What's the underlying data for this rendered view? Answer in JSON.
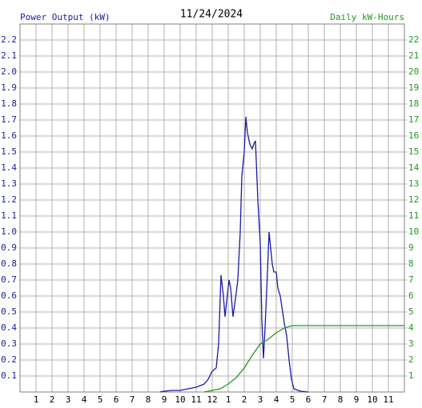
{
  "chart_data": {
    "type": "line",
    "title": "11/24/2024",
    "y_label": "Power Output (kW)",
    "y2_label": "Daily kW-Hours",
    "xlim": [
      0,
      24
    ],
    "xticks": [
      1,
      2,
      3,
      4,
      5,
      6,
      7,
      8,
      9,
      10,
      11,
      12,
      {
        "value": 13,
        "label": "1"
      },
      {
        "value": 14,
        "label": "2"
      },
      {
        "value": 15,
        "label": "3"
      },
      {
        "value": 16,
        "label": "4"
      },
      {
        "value": 17,
        "label": "5"
      },
      {
        "value": 18,
        "label": "6"
      },
      {
        "value": 19,
        "label": "7"
      },
      {
        "value": 20,
        "label": "8"
      },
      {
        "value": 21,
        "label": "9"
      },
      {
        "value": 22,
        "label": "10"
      },
      {
        "value": 23,
        "label": "11"
      }
    ],
    "ylim": [
      0,
      2.3
    ],
    "yticks": [
      0.1,
      0.2,
      0.3,
      0.4,
      0.5,
      0.6,
      0.7,
      0.8,
      0.9,
      {
        "value": 1,
        "label": "1.0"
      },
      1.1,
      1.2,
      1.3,
      1.4,
      1.5,
      1.6,
      1.7,
      1.8,
      1.9,
      {
        "value": 2,
        "label": "2.0"
      },
      2.1,
      2.2
    ],
    "y2lim": [
      0,
      23
    ],
    "y2ticks": [
      1,
      2,
      3,
      4,
      5,
      6,
      7,
      8,
      9,
      10,
      11,
      12,
      13,
      14,
      15,
      16,
      17,
      18,
      19,
      20,
      21,
      22
    ],
    "grid": true,
    "series": [
      {
        "name": "Power Output (kW)",
        "color": "#1a1aa6",
        "x": [
          8.75,
          9,
          9.5,
          10,
          10.5,
          11,
          11.5,
          11.75,
          12,
          12.25,
          12.4,
          12.55,
          12.7,
          12.8,
          13.05,
          13.15,
          13.3,
          13.45,
          13.6,
          13.75,
          13.85,
          14,
          14.1,
          14.2,
          14.35,
          14.5,
          14.6,
          14.7,
          14.85,
          15,
          15.1,
          15.2,
          15.3,
          15.45,
          15.55,
          15.65,
          15.75,
          15.85,
          16,
          16.1,
          16.25,
          16.4,
          16.5,
          16.65,
          16.8,
          16.95,
          17.1,
          17.5,
          18
        ],
        "values": [
          0,
          0.005,
          0.01,
          0.01,
          0.02,
          0.03,
          0.05,
          0.08,
          0.13,
          0.15,
          0.3,
          0.73,
          0.6,
          0.47,
          0.7,
          0.65,
          0.47,
          0.58,
          0.7,
          1.0,
          1.35,
          1.5,
          1.72,
          1.62,
          1.55,
          1.52,
          1.55,
          1.57,
          1.2,
          0.93,
          0.45,
          0.21,
          0.4,
          0.75,
          1.0,
          0.9,
          0.8,
          0.75,
          0.75,
          0.65,
          0.6,
          0.5,
          0.43,
          0.35,
          0.2,
          0.08,
          0.02,
          0.005,
          0
        ]
      },
      {
        "name": "Daily kW-Hours",
        "color": "#1f9a1f",
        "axis": "y2",
        "x": [
          11.5,
          12,
          12.5,
          13,
          13.5,
          14,
          14.5,
          15,
          15.5,
          16,
          16.5,
          17,
          24
        ],
        "values": [
          0,
          0.1,
          0.2,
          0.5,
          0.9,
          1.5,
          2.3,
          3.0,
          3.3,
          3.7,
          4.0,
          4.15,
          4.15
        ]
      }
    ]
  }
}
